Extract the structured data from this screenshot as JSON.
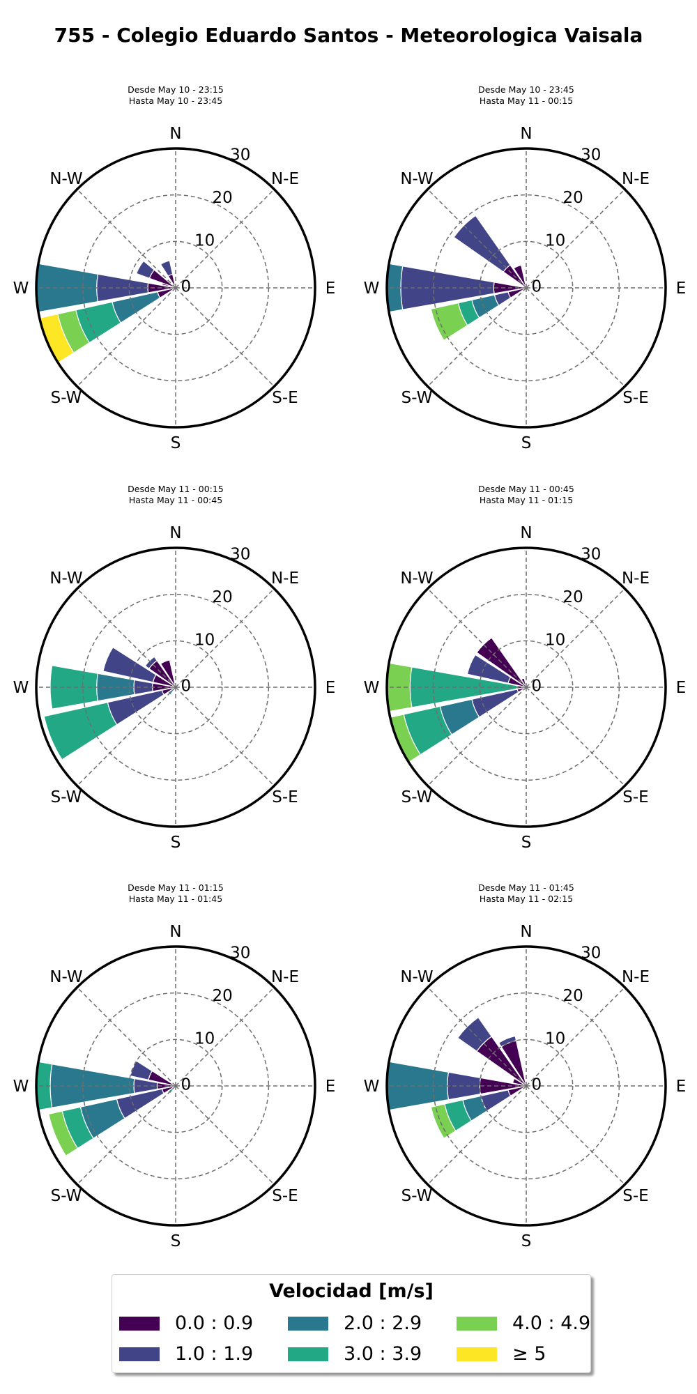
{
  "title": "755 - Colegio Eduardo Santos - Meteorologica Vaisala",
  "colors": [
    "#440154",
    "#414487",
    "#2a788e",
    "#22a884",
    "#7ad151",
    "#fde725"
  ],
  "legend": {
    "title": "Velocidad [m/s]",
    "items": [
      "0.0 : 0.9",
      "1.0 : 1.9",
      "2.0 : 2.9",
      "3.0 : 3.9",
      "4.0 : 4.9",
      "≥  5"
    ]
  },
  "chart_data": [
    {
      "type": "windrose",
      "title": "Desde May 10 - 23:15\nHasta May 10 - 23:45",
      "direction_labels": [
        "N",
        "N-E",
        "E",
        "S-E",
        "S",
        "S-W",
        "W",
        "N-W"
      ],
      "radial_ticks": [
        "0",
        "10",
        "20",
        "30"
      ],
      "rlim": [
        0,
        30
      ],
      "grid": true,
      "sectors": [
        {
          "direction_deg": 292.5,
          "bins": [
            {
              "range": "0.0 : 0.9",
              "from": 0,
              "to": 3
            }
          ]
        },
        {
          "direction_deg": 300,
          "bins": [
            {
              "range": "0.0 : 0.9",
              "from": 0,
              "to": 6
            },
            {
              "range": "1.0 : 1.9",
              "from": 6,
              "to": 9
            }
          ]
        },
        {
          "direction_deg": 337.5,
          "bins": [
            {
              "range": "0.0 : 0.9",
              "from": 0,
              "to": 3
            },
            {
              "range": "1.0 : 1.9",
              "from": 3,
              "to": 6
            }
          ]
        },
        {
          "direction_deg": 270,
          "bins": [
            {
              "range": "0.0 : 0.9",
              "from": 0,
              "to": 6
            },
            {
              "range": "1.0 : 1.9",
              "from": 6,
              "to": 17
            },
            {
              "range": "2.0 : 2.9",
              "from": 17,
              "to": 30
            }
          ]
        },
        {
          "direction_deg": 247.5,
          "bins": [
            {
              "range": "0.0 : 0.9",
              "from": 0,
              "to": 4
            },
            {
              "range": "2.0 : 2.9",
              "from": 4,
              "to": 14
            },
            {
              "range": "3.0 : 3.9",
              "from": 14,
              "to": 22
            },
            {
              "range": "4.0 : 4.9",
              "from": 22,
              "to": 26
            },
            {
              "range": "≥  5",
              "from": 26,
              "to": 30
            }
          ]
        }
      ]
    },
    {
      "type": "windrose",
      "title": "Desde May 10 - 23:45\nHasta May 11 - 00:15",
      "direction_labels": [
        "N",
        "N-E",
        "E",
        "S-E",
        "S",
        "S-W",
        "W",
        "N-W"
      ],
      "radial_ticks": [
        "0",
        "10",
        "20",
        "30"
      ],
      "rlim": [
        0,
        30
      ],
      "grid": true,
      "sectors": [
        {
          "direction_deg": 337.5,
          "bins": [
            {
              "range": "0.0 : 0.9",
              "from": 0,
              "to": 5
            }
          ]
        },
        {
          "direction_deg": 315,
          "bins": [
            {
              "range": "0.0 : 0.9",
              "from": 0,
              "to": 6
            },
            {
              "range": "1.0 : 1.9",
              "from": 6,
              "to": 19
            }
          ]
        },
        {
          "direction_deg": 270,
          "bins": [
            {
              "range": "0.0 : 0.9",
              "from": 0,
              "to": 7
            },
            {
              "range": "1.0 : 1.9",
              "from": 7,
              "to": 27
            },
            {
              "range": "2.0 : 2.9",
              "from": 27,
              "to": 30
            }
          ]
        },
        {
          "direction_deg": 247.5,
          "bins": [
            {
              "range": "0.0 : 0.9",
              "from": 0,
              "to": 4
            },
            {
              "range": "1.0 : 1.9",
              "from": 4,
              "to": 7
            },
            {
              "range": "2.0 : 2.9",
              "from": 7,
              "to": 12
            },
            {
              "range": "3.0 : 3.9",
              "from": 12,
              "to": 15
            },
            {
              "range": "4.0 : 4.9",
              "from": 15,
              "to": 21
            }
          ]
        }
      ]
    },
    {
      "type": "windrose",
      "title": "Desde May 11 - 00:15\nHasta May 11 - 00:45",
      "direction_labels": [
        "N",
        "N-E",
        "E",
        "S-E",
        "S",
        "S-W",
        "W",
        "N-W"
      ],
      "radial_ticks": [
        "0",
        "10",
        "20",
        "30"
      ],
      "rlim": [
        0,
        30
      ],
      "grid": true,
      "sectors": [
        {
          "direction_deg": 337.5,
          "bins": [
            {
              "range": "0.0 : 0.9",
              "from": 0,
              "to": 6
            }
          ]
        },
        {
          "direction_deg": 315,
          "bins": [
            {
              "range": "0.0 : 0.9",
              "from": 0,
              "to": 7
            },
            {
              "range": "1.0 : 1.9",
              "from": 7,
              "to": 8
            }
          ]
        },
        {
          "direction_deg": 292.5,
          "bins": [
            {
              "range": "0.0 : 0.9",
              "from": 0,
              "to": 5
            },
            {
              "range": "1.0 : 1.9",
              "from": 5,
              "to": 16
            }
          ]
        },
        {
          "direction_deg": 270,
          "bins": [
            {
              "range": "0.0 : 0.9",
              "from": 0,
              "to": 5
            },
            {
              "range": "1.0 : 1.9",
              "from": 5,
              "to": 9
            },
            {
              "range": "2.0 : 2.9",
              "from": 9,
              "to": 17
            },
            {
              "range": "3.0 : 3.9",
              "from": 17,
              "to": 27
            }
          ]
        },
        {
          "direction_deg": 247.5,
          "bins": [
            {
              "range": "0.0 : 0.9",
              "from": 0,
              "to": 3
            },
            {
              "range": "1.0 : 1.9",
              "from": 3,
              "to": 15
            },
            {
              "range": "3.0 : 3.9",
              "from": 15,
              "to": 29
            }
          ]
        },
        {
          "direction_deg": 225,
          "bins": [
            {
              "range": "2.0 : 2.9",
              "from": 0,
              "to": 2
            }
          ]
        }
      ]
    },
    {
      "type": "windrose",
      "title": "Desde May 11 - 00:45\nHasta May 11 - 01:15",
      "direction_labels": [
        "N",
        "N-E",
        "E",
        "S-E",
        "S",
        "S-W",
        "W",
        "N-W"
      ],
      "radial_ticks": [
        "0",
        "10",
        "20",
        "30"
      ],
      "rlim": [
        0,
        30
      ],
      "grid": true,
      "sectors": [
        {
          "direction_deg": 337.5,
          "bins": [
            {
              "range": "0.0 : 0.9",
              "from": 0,
              "to": 2
            }
          ]
        },
        {
          "direction_deg": 315,
          "bins": [
            {
              "range": "0.0 : 0.9",
              "from": 0,
              "to": 13
            }
          ]
        },
        {
          "direction_deg": 292.5,
          "bins": [
            {
              "range": "0.0 : 0.9",
              "from": 0,
              "to": 4
            },
            {
              "range": "1.0 : 1.9",
              "from": 4,
              "to": 13
            }
          ]
        },
        {
          "direction_deg": 270,
          "bins": [
            {
              "range": "0.0 : 0.9",
              "from": 0,
              "to": 2
            },
            {
              "range": "3.0 : 3.9",
              "from": 2,
              "to": 25
            },
            {
              "range": "4.0 : 4.9",
              "from": 25,
              "to": 30
            }
          ]
        },
        {
          "direction_deg": 247.5,
          "bins": [
            {
              "range": "0.0 : 0.9",
              "from": 0,
              "to": 2
            },
            {
              "range": "1.0 : 1.9",
              "from": 2,
              "to": 12
            },
            {
              "range": "2.0 : 2.9",
              "from": 12,
              "to": 19
            },
            {
              "range": "3.0 : 3.9",
              "from": 19,
              "to": 27
            },
            {
              "range": "4.0 : 4.9",
              "from": 27,
              "to": 30
            }
          ]
        }
      ]
    },
    {
      "type": "windrose",
      "title": "Desde May 11 - 01:15\nHasta May 11 - 01:45",
      "direction_labels": [
        "N",
        "N-E",
        "E",
        "S-E",
        "S",
        "S-W",
        "W",
        "N-W"
      ],
      "radial_ticks": [
        "0",
        "10",
        "20",
        "30"
      ],
      "rlim": [
        0,
        30
      ],
      "grid": true,
      "sectors": [
        {
          "direction_deg": 292.5,
          "bins": [
            {
              "range": "0.0 : 0.9",
              "from": 0,
              "to": 6
            },
            {
              "range": "1.0 : 1.9",
              "from": 6,
              "to": 10
            }
          ]
        },
        {
          "direction_deg": 270,
          "bins": [
            {
              "range": "0.0 : 0.9",
              "from": 0,
              "to": 4
            },
            {
              "range": "1.0 : 1.9",
              "from": 4,
              "to": 9
            },
            {
              "range": "2.0 : 2.9",
              "from": 9,
              "to": 27
            },
            {
              "range": "3.0 : 3.9",
              "from": 27,
              "to": 30
            }
          ]
        },
        {
          "direction_deg": 247.5,
          "bins": [
            {
              "range": "0.0 : 0.9",
              "from": 0,
              "to": 3
            },
            {
              "range": "1.0 : 1.9",
              "from": 3,
              "to": 13
            },
            {
              "range": "2.0 : 2.9",
              "from": 13,
              "to": 21
            },
            {
              "range": "3.0 : 3.9",
              "from": 21,
              "to": 25
            },
            {
              "range": "4.0 : 4.9",
              "from": 25,
              "to": 28
            }
          ]
        },
        {
          "direction_deg": 225,
          "bins": [
            {
              "range": "3.0 : 3.9",
              "from": 0,
              "to": 2
            }
          ]
        }
      ]
    },
    {
      "type": "windrose",
      "title": "Desde May 11 - 01:45\nHasta May 11 - 02:15",
      "direction_labels": [
        "N",
        "N-E",
        "E",
        "S-E",
        "S",
        "S-W",
        "W",
        "N-W"
      ],
      "radial_ticks": [
        "0",
        "10",
        "20",
        "30"
      ],
      "rlim": [
        0,
        30
      ],
      "grid": true,
      "sectors": [
        {
          "direction_deg": 337.5,
          "bins": [
            {
              "range": "0.0 : 0.9",
              "from": 0,
              "to": 10
            },
            {
              "range": "1.0 : 1.9",
              "from": 10,
              "to": 11
            }
          ]
        },
        {
          "direction_deg": 315,
          "bins": [
            {
              "range": "0.0 : 0.9",
              "from": 0,
              "to": 13
            },
            {
              "range": "1.0 : 1.9",
              "from": 13,
              "to": 18
            }
          ]
        },
        {
          "direction_deg": 292.5,
          "bins": [
            {
              "range": "0.0 : 0.9",
              "from": 0,
              "to": 3
            }
          ]
        },
        {
          "direction_deg": 270,
          "bins": [
            {
              "range": "0.0 : 0.9",
              "from": 0,
              "to": 10
            },
            {
              "range": "1.0 : 1.9",
              "from": 10,
              "to": 17
            },
            {
              "range": "2.0 : 2.9",
              "from": 17,
              "to": 30
            }
          ]
        },
        {
          "direction_deg": 247.5,
          "bins": [
            {
              "range": "0.0 : 0.9",
              "from": 0,
              "to": 4
            },
            {
              "range": "1.0 : 1.9",
              "from": 4,
              "to": 10
            },
            {
              "range": "2.0 : 2.9",
              "from": 10,
              "to": 14
            },
            {
              "range": "3.0 : 3.9",
              "from": 14,
              "to": 18
            },
            {
              "range": "4.0 : 4.9",
              "from": 18,
              "to": 21
            }
          ]
        }
      ]
    }
  ]
}
